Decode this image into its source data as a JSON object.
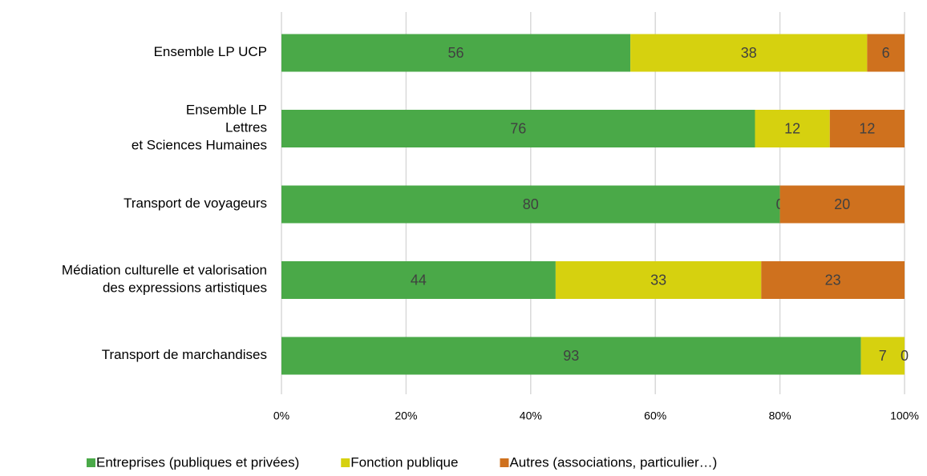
{
  "chart_data": {
    "type": "stacked_bar_horizontal",
    "categories": [
      "Ensemble LP UCP",
      "Ensemble LP\nLettres\net Sciences Humaines",
      "Transport de voyageurs",
      "Médiation culturelle et valorisation\ndes expressions artistiques",
      "Transport de marchandises"
    ],
    "series": [
      {
        "name": "Entreprises (publiques et privées)",
        "color": "#4aa948",
        "values": [
          56,
          76,
          80,
          44,
          93
        ]
      },
      {
        "name": "Fonction publique",
        "color": "#d6d10f",
        "values": [
          38,
          12,
          0,
          33,
          7
        ]
      },
      {
        "name": "Autres (associations, particulier…)",
        "color": "#cf711e",
        "values": [
          6,
          12,
          20,
          23,
          0
        ]
      }
    ],
    "xlim": [
      0,
      100
    ],
    "xticks": [
      {
        "value": 0,
        "label": "0%"
      },
      {
        "value": 20,
        "label": "20%"
      },
      {
        "value": 40,
        "label": "40%"
      },
      {
        "value": 60,
        "label": "60%"
      },
      {
        "value": 80,
        "label": "80%"
      },
      {
        "value": 100,
        "label": "100%"
      }
    ],
    "grid": true,
    "legend": "bottom"
  }
}
